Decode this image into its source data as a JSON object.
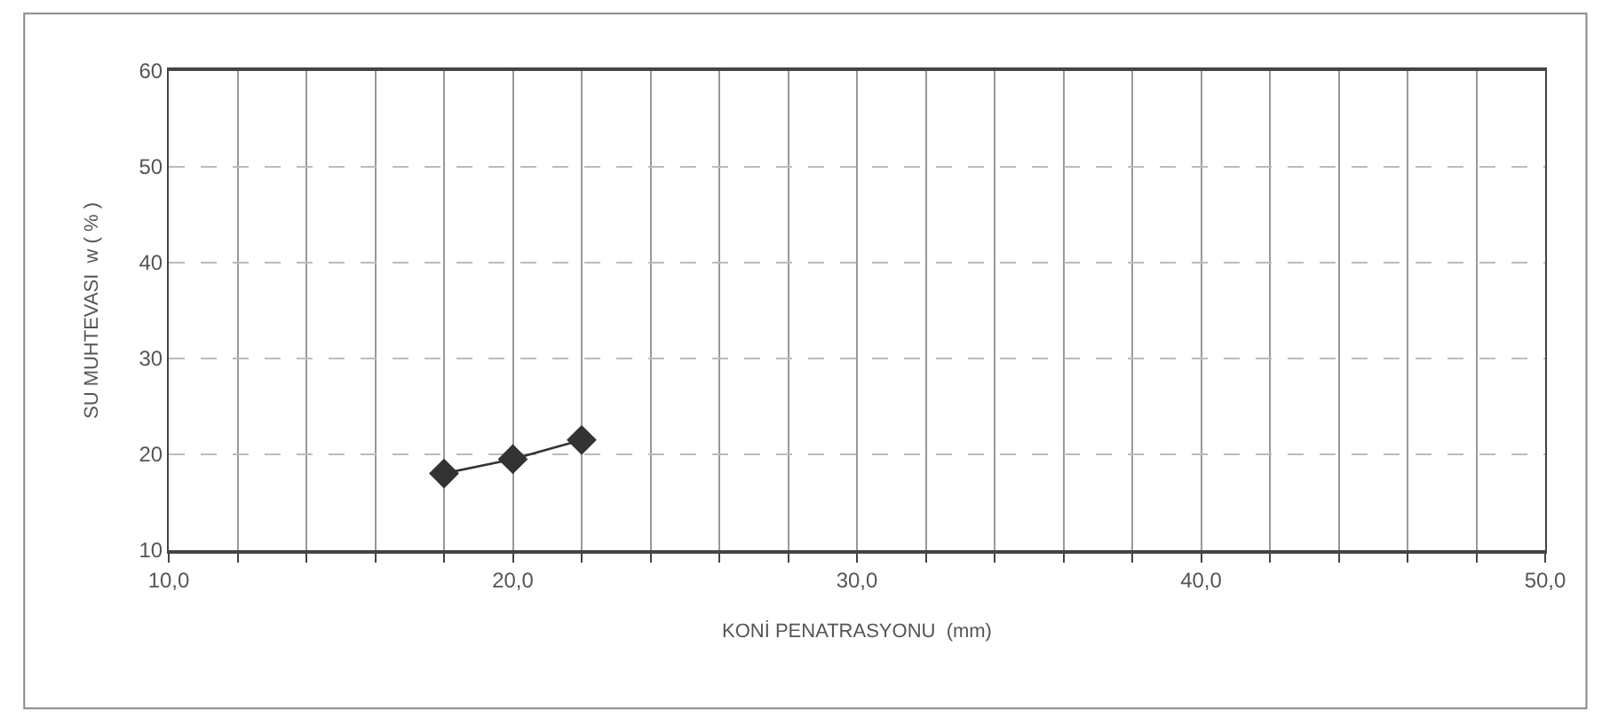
{
  "chart_data": {
    "type": "line",
    "xlabel": "KONİ PENATRASYONU  (mm)",
    "ylabel": "SU MUHTEVASI  w ( % )",
    "x": [
      18,
      20,
      22
    ],
    "series": [
      {
        "color": "#333333",
        "values": [
          18,
          19.5,
          21.5
        ]
      }
    ],
    "xlim": [
      10,
      50
    ],
    "xticks": [
      {
        "value": 10,
        "label": "10,0"
      },
      {
        "value": 12,
        "label": null
      },
      {
        "value": 14,
        "label": null
      },
      {
        "value": 16,
        "label": null
      },
      {
        "value": 18,
        "label": null
      },
      {
        "value": 20,
        "label": "20,0"
      },
      {
        "value": 22,
        "label": null
      },
      {
        "value": 24,
        "label": null
      },
      {
        "value": 26,
        "label": null
      },
      {
        "value": 28,
        "label": null
      },
      {
        "value": 30,
        "label": "30,0"
      },
      {
        "value": 32,
        "label": null
      },
      {
        "value": 34,
        "label": null
      },
      {
        "value": 36,
        "label": null
      },
      {
        "value": 38,
        "label": null
      },
      {
        "value": 40,
        "label": "40,0"
      },
      {
        "value": 42,
        "label": null
      },
      {
        "value": 44,
        "label": null
      },
      {
        "value": 46,
        "label": null
      },
      {
        "value": 48,
        "label": null
      },
      {
        "value": 50,
        "label": "50,0"
      }
    ],
    "ylim": [
      10,
      60
    ],
    "yticks": [
      10,
      20,
      30,
      40,
      50,
      60
    ],
    "grid": true,
    "marker": "diamond",
    "line_style": "solid"
  }
}
